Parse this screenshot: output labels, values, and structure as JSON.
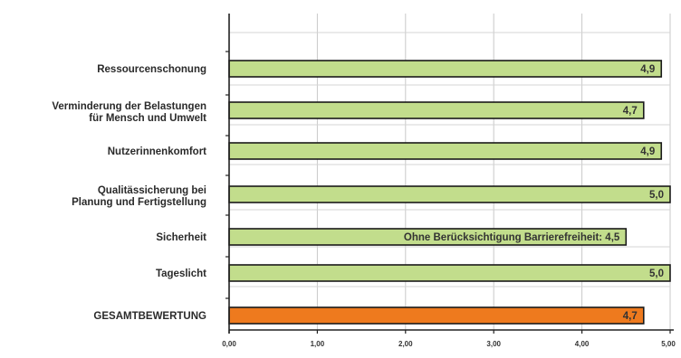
{
  "chart_data": {
    "type": "bar",
    "orientation": "horizontal",
    "categories": [
      [
        "Ressourcenschonung"
      ],
      [
        "Verminderung der Belastungen",
        "für Mensch und Umwelt"
      ],
      [
        "Nutzerinnenkomfort"
      ],
      [
        "Qualitässicherung bei",
        "Planung und Fertigstellung"
      ],
      [
        "Sicherheit"
      ],
      [
        "Tageslicht"
      ],
      [
        "GESAMTBEWERTUNG"
      ]
    ],
    "values": [
      4.9,
      4.7,
      4.9,
      5.0,
      4.5,
      5.0,
      4.7
    ],
    "value_labels": [
      "4,9",
      "4,7",
      "4,9",
      "5,0",
      "Ohne Berücksichtigung Barrierefreiheit: 4,5",
      "5,0",
      "4,7"
    ],
    "bar_colors": [
      "#c2dd8c",
      "#c2dd8c",
      "#c2dd8c",
      "#c2dd8c",
      "#c2dd8c",
      "#c2dd8c",
      "#ee7a1e"
    ],
    "x_ticks": [
      "0,00",
      "1,00",
      "2,00",
      "3,00",
      "4,00",
      "5,00"
    ],
    "xlim": [
      0,
      5
    ],
    "grid": true,
    "title": "",
    "xlabel": "",
    "ylabel": ""
  }
}
